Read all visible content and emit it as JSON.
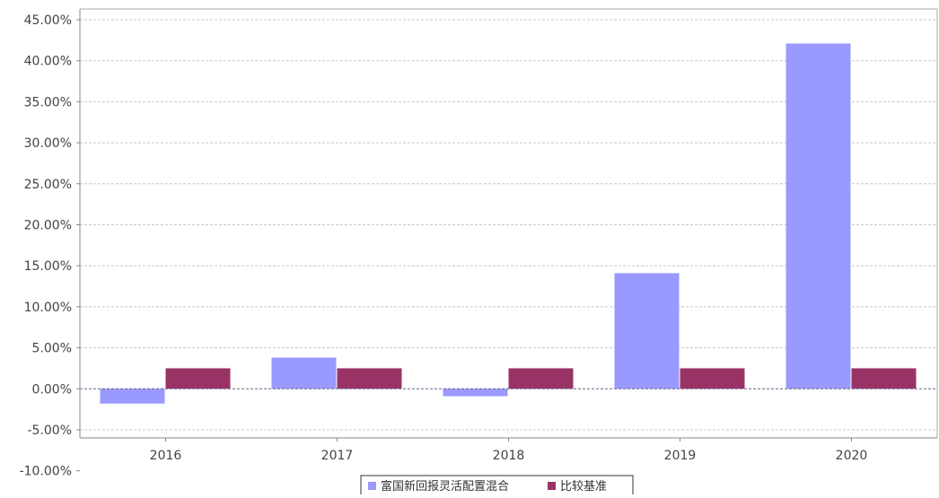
{
  "chart_data": {
    "type": "bar",
    "categories": [
      "2016",
      "2017",
      "2018",
      "2019",
      "2020"
    ],
    "series": [
      {
        "name": "富国新回报灵活配置混合",
        "values": [
          -1.8,
          3.8,
          -0.9,
          14.1,
          42.1
        ]
      },
      {
        "name": "比较基准",
        "values": [
          2.5,
          2.5,
          2.5,
          2.5,
          2.5
        ]
      }
    ],
    "yticks": [
      "45.00%",
      "40.00%",
      "35.00%",
      "30.00%",
      "25.00%",
      "20.00%",
      "15.00%",
      "10.00%",
      "5.00%",
      "0.00%",
      "-5.00%",
      "-10.00%"
    ],
    "ylim": [
      -10,
      45
    ],
    "grid": true,
    "legend_position": "bottom-center",
    "colors": [
      "#9999ff",
      "#993366"
    ]
  }
}
